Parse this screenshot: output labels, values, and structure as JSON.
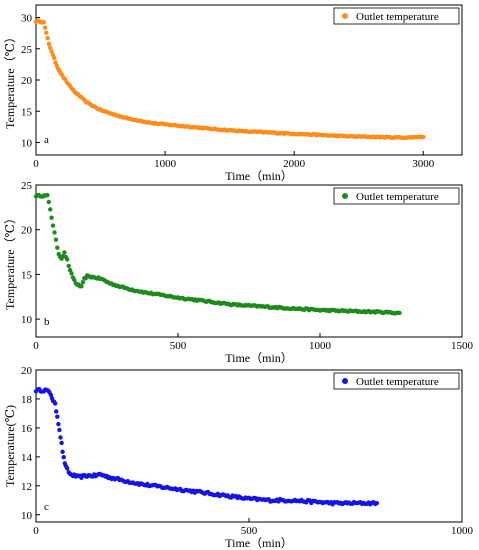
{
  "chart_data": [
    {
      "type": "scatter",
      "panel_letter": "a",
      "xlabel": "Time（min）",
      "ylabel": "Temperature（℃）",
      "xlim": [
        0,
        3300
      ],
      "ylim": [
        8,
        32
      ],
      "xticks": [
        0,
        1000,
        2000,
        3000
      ],
      "yticks": [
        10,
        15,
        20,
        25,
        30
      ],
      "legend": "top-right",
      "grid": false,
      "series": [
        {
          "name": "Outlet temperature",
          "color": "#ff8c1a",
          "x": [
            0,
            30,
            60,
            80,
            100,
            130,
            160,
            200,
            250,
            300,
            350,
            400,
            500,
            600,
            700,
            800,
            900,
            1000,
            1200,
            1400,
            1600,
            1800,
            2000,
            2200,
            2400,
            2600,
            2800,
            2900,
            2950,
            3000
          ],
          "y": [
            29.4,
            29.4,
            29.2,
            27.5,
            25.8,
            24.0,
            22.3,
            20.8,
            19.3,
            18.1,
            17.2,
            16.3,
            15.2,
            14.5,
            13.9,
            13.5,
            13.1,
            12.9,
            12.5,
            12.1,
            11.8,
            11.6,
            11.4,
            11.2,
            11.0,
            10.9,
            10.8,
            10.8,
            10.9,
            10.9
          ]
        }
      ]
    },
    {
      "type": "scatter",
      "panel_letter": "b",
      "xlabel": "Time（min）",
      "ylabel": "Temperature（℃）",
      "xlim": [
        0,
        1500
      ],
      "ylim": [
        8,
        25
      ],
      "xticks": [
        0,
        500,
        1000,
        1500
      ],
      "yticks": [
        10,
        15,
        20,
        25
      ],
      "legend": "top-right",
      "grid": false,
      "series": [
        {
          "name": "Outlet temperature",
          "color": "#1f8a1f",
          "x": [
            0,
            20,
            40,
            50,
            60,
            70,
            80,
            90,
            100,
            110,
            120,
            140,
            160,
            170,
            180,
            200,
            230,
            260,
            300,
            350,
            400,
            500,
            600,
            700,
            800,
            900,
            1000,
            1100,
            1200,
            1280
          ],
          "y": [
            23.8,
            23.8,
            23.8,
            22.3,
            20.5,
            18.8,
            17.3,
            16.8,
            17.4,
            16.6,
            15.4,
            14.0,
            13.6,
            14.5,
            14.8,
            14.7,
            14.5,
            14.0,
            13.6,
            13.2,
            12.9,
            12.4,
            12.0,
            11.6,
            11.4,
            11.2,
            11.0,
            10.9,
            10.8,
            10.7
          ]
        }
      ]
    },
    {
      "type": "scatter",
      "panel_letter": "c",
      "xlabel": "Time（min）",
      "ylabel": "Temperature(℃)",
      "xlim": [
        0,
        1000
      ],
      "ylim": [
        9.5,
        20
      ],
      "xticks": [
        0,
        500,
        1000
      ],
      "yticks": [
        10,
        12,
        14,
        16,
        18,
        20
      ],
      "legend": "top-right",
      "grid": false,
      "series": [
        {
          "name": "Outlet temperature",
          "color": "#1414e6",
          "x": [
            0,
            15,
            25,
            35,
            40,
            45,
            50,
            55,
            60,
            65,
            70,
            80,
            90,
            100,
            120,
            140,
            150,
            170,
            200,
            250,
            300,
            350,
            400,
            450,
            500,
            550,
            600,
            650,
            700,
            750,
            800
          ],
          "y": [
            18.6,
            18.6,
            18.6,
            18.3,
            17.9,
            17.6,
            16.8,
            15.9,
            14.9,
            13.9,
            13.3,
            12.8,
            12.7,
            12.6,
            12.7,
            12.7,
            12.8,
            12.6,
            12.4,
            12.1,
            11.9,
            11.7,
            11.5,
            11.3,
            11.1,
            11.0,
            11.0,
            10.9,
            10.8,
            10.8,
            10.8
          ]
        }
      ]
    }
  ]
}
